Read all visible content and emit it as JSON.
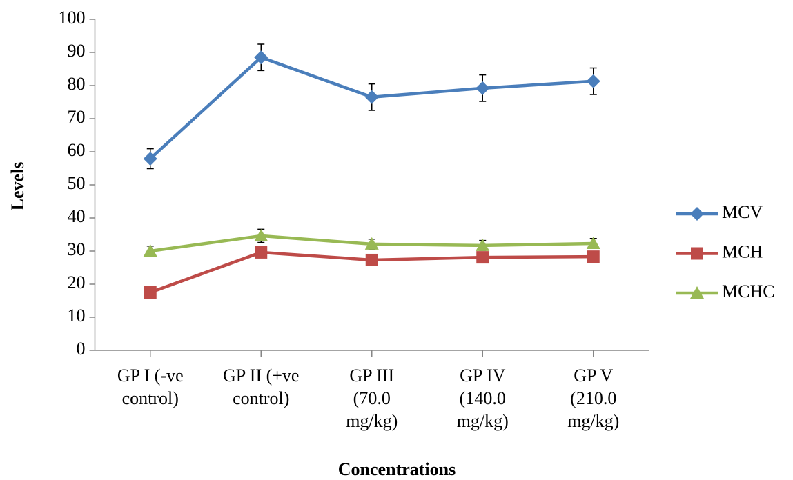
{
  "chart_data": {
    "type": "line",
    "x_label": "Concentrations",
    "y_label": "Levels",
    "categories": [
      "GP I (-ve control)",
      "GP II (+ve control)",
      "GP III (70.0 mg/kg)",
      "GP IV (140.0 mg/kg)",
      "GP V (210.0 mg/kg)"
    ],
    "series": [
      {
        "name": "MCV",
        "color": "#4a7ebb",
        "marker": "diamond",
        "values": [
          57.9,
          88.5,
          76.5,
          79.2,
          81.3
        ],
        "errors": [
          3,
          4,
          4,
          4,
          4
        ]
      },
      {
        "name": "MCH",
        "color": "#be4b48",
        "marker": "square",
        "values": [
          17.5,
          29.6,
          27.3,
          28.1,
          28.3
        ],
        "errors": [
          1,
          1,
          1,
          1,
          1
        ]
      },
      {
        "name": "MCHC",
        "color": "#98b954",
        "marker": "triangle",
        "values": [
          30,
          34.6,
          32.1,
          31.7,
          32.3
        ],
        "errors": [
          1.5,
          2,
          1.5,
          1.5,
          1.5
        ]
      }
    ],
    "ylim": [
      0,
      100
    ],
    "yticks": [
      0,
      10,
      20,
      30,
      40,
      50,
      60,
      70,
      80,
      90,
      100
    ],
    "legend": "right"
  }
}
